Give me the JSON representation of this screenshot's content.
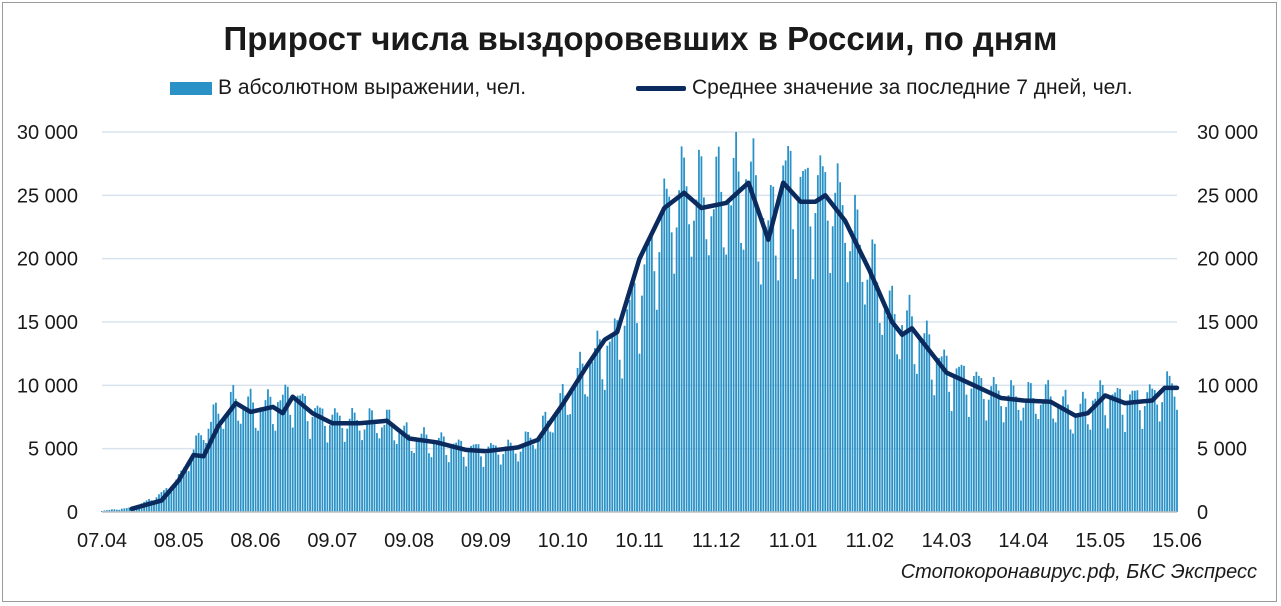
{
  "title": "Прирост числа выздоровевших в России, по дням",
  "legend": {
    "bars_label": "В абсолютном выражении, чел.",
    "line_label": "Среднее значение за последние 7 дней, чел."
  },
  "source": "Стопокоронавирус.рф, БКС Экспресс",
  "colors": {
    "bars": "#2a92c6",
    "line": "#0b2a5e",
    "grid": "#d9e3ee",
    "text": "#1a1a1a"
  },
  "chart_data": {
    "type": "bar",
    "title": "Прирост числа выздоровевших в России, по дням",
    "ylim": [
      0,
      30000
    ],
    "y_ticks": [
      0,
      5000,
      10000,
      15000,
      20000,
      25000,
      30000
    ],
    "y_tick_labels": [
      "0",
      "5 000",
      "10 000",
      "15 000",
      "20 000",
      "25 000",
      "30 000"
    ],
    "x_tick_labels": [
      "07.04",
      "08.05",
      "08.06",
      "09.07",
      "09.08",
      "09.09",
      "10.10",
      "10.11",
      "11.12",
      "11.01",
      "11.02",
      "14.03",
      "14.04",
      "15.05",
      "15.06"
    ],
    "x_tick_dates": [
      "2020-04-07",
      "2020-05-08",
      "2020-06-08",
      "2020-07-09",
      "2020-08-09",
      "2020-09-09",
      "2020-10-10",
      "2020-11-10",
      "2020-12-11",
      "2021-01-11",
      "2021-02-11",
      "2021-03-14",
      "2021-04-14",
      "2021-05-15",
      "2021-06-15"
    ],
    "date_range": [
      "2020-04-07",
      "2021-06-15"
    ],
    "series": [
      {
        "name": "В абсолютном выражении, чел.",
        "kind": "bar",
        "weekly_amplitude": 0.3,
        "anchors": [
          [
            "2020-04-07",
            100
          ],
          [
            "2020-04-20",
            350
          ],
          [
            "2020-05-01",
            1400
          ],
          [
            "2020-05-08",
            2600
          ],
          [
            "2020-05-20",
            7000
          ],
          [
            "2020-05-31",
            8600
          ],
          [
            "2020-06-08",
            8000
          ],
          [
            "2020-06-15",
            8300
          ],
          [
            "2020-06-23",
            9000
          ],
          [
            "2020-07-01",
            7700
          ],
          [
            "2020-07-09",
            7200
          ],
          [
            "2020-07-20",
            7000
          ],
          [
            "2020-07-31",
            7000
          ],
          [
            "2020-08-09",
            5800
          ],
          [
            "2020-08-20",
            5500
          ],
          [
            "2020-09-01",
            4900
          ],
          [
            "2020-09-09",
            4800
          ],
          [
            "2020-09-22",
            5000
          ],
          [
            "2020-10-01",
            6300
          ],
          [
            "2020-10-10",
            8500
          ],
          [
            "2020-10-20",
            11500
          ],
          [
            "2020-11-01",
            13500
          ],
          [
            "2020-11-10",
            17000
          ],
          [
            "2020-11-20",
            23000
          ],
          [
            "2020-11-28",
            25000
          ],
          [
            "2020-12-06",
            24300
          ],
          [
            "2020-12-15",
            24500
          ],
          [
            "2020-12-24",
            26000
          ],
          [
            "2021-01-01",
            21500
          ],
          [
            "2021-01-07",
            26000
          ],
          [
            "2021-01-15",
            24500
          ],
          [
            "2021-01-24",
            25000
          ],
          [
            "2021-02-01",
            23000
          ],
          [
            "2021-02-11",
            19000
          ],
          [
            "2021-02-20",
            15000
          ],
          [
            "2021-02-28",
            14300
          ],
          [
            "2021-03-14",
            11000
          ],
          [
            "2021-03-25",
            10000
          ],
          [
            "2021-04-05",
            9000
          ],
          [
            "2021-04-14",
            8800
          ],
          [
            "2021-04-25",
            8800
          ],
          [
            "2021-05-05",
            7600
          ],
          [
            "2021-05-15",
            9000
          ],
          [
            "2021-05-25",
            8600
          ],
          [
            "2021-06-05",
            8900
          ],
          [
            "2021-06-15",
            10000
          ]
        ]
      },
      {
        "name": "Среднее значение за последние 7 дней, чел.",
        "kind": "line",
        "points": [
          [
            "2020-04-19",
            250
          ],
          [
            "2020-05-01",
            900
          ],
          [
            "2020-05-08",
            2500
          ],
          [
            "2020-05-14",
            4500
          ],
          [
            "2020-05-18",
            4400
          ],
          [
            "2020-05-24",
            6800
          ],
          [
            "2020-05-31",
            8600
          ],
          [
            "2020-06-06",
            7900
          ],
          [
            "2020-06-15",
            8300
          ],
          [
            "2020-06-19",
            7800
          ],
          [
            "2020-06-23",
            9100
          ],
          [
            "2020-07-01",
            7800
          ],
          [
            "2020-07-09",
            7000
          ],
          [
            "2020-07-20",
            7000
          ],
          [
            "2020-07-31",
            7200
          ],
          [
            "2020-08-09",
            5800
          ],
          [
            "2020-08-20",
            5500
          ],
          [
            "2020-09-01",
            4900
          ],
          [
            "2020-09-09",
            4800
          ],
          [
            "2020-09-22",
            5100
          ],
          [
            "2020-09-30",
            5700
          ],
          [
            "2020-10-10",
            8500
          ],
          [
            "2020-10-20",
            11600
          ],
          [
            "2020-10-27",
            13600
          ],
          [
            "2020-11-01",
            14200
          ],
          [
            "2020-11-10",
            20000
          ],
          [
            "2020-11-20",
            24000
          ],
          [
            "2020-11-28",
            25200
          ],
          [
            "2020-12-05",
            24000
          ],
          [
            "2020-12-15",
            24400
          ],
          [
            "2020-12-24",
            26000
          ],
          [
            "2021-01-01",
            21500
          ],
          [
            "2021-01-07",
            26000
          ],
          [
            "2021-01-14",
            24500
          ],
          [
            "2021-01-20",
            24500
          ],
          [
            "2021-01-24",
            25000
          ],
          [
            "2021-02-01",
            23000
          ],
          [
            "2021-02-11",
            19000
          ],
          [
            "2021-02-20",
            15000
          ],
          [
            "2021-02-24",
            14000
          ],
          [
            "2021-02-28",
            14500
          ],
          [
            "2021-03-14",
            11000
          ],
          [
            "2021-03-25",
            10000
          ],
          [
            "2021-04-05",
            9000
          ],
          [
            "2021-04-14",
            8800
          ],
          [
            "2021-04-25",
            8700
          ],
          [
            "2021-05-05",
            7600
          ],
          [
            "2021-05-10",
            7800
          ],
          [
            "2021-05-17",
            9200
          ],
          [
            "2021-05-25",
            8600
          ],
          [
            "2021-06-05",
            8800
          ],
          [
            "2021-06-10",
            9800
          ],
          [
            "2021-06-15",
            9800
          ]
        ]
      }
    ],
    "grid": true,
    "legend_position": "top"
  }
}
